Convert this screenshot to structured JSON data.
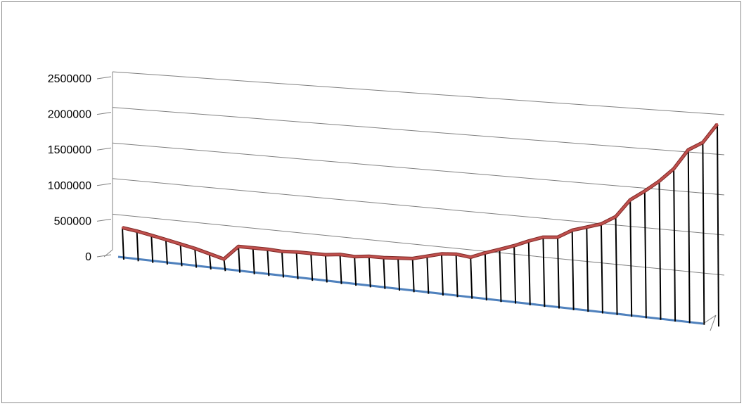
{
  "chart_data": {
    "type": "line",
    "style": "3d",
    "ylim": [
      0,
      2500000
    ],
    "y_ticks": [
      "0",
      "500000",
      "1000000",
      "1500000",
      "2000000",
      "2500000"
    ],
    "grid": true,
    "series": [
      {
        "color": "#c0504d",
        "values": [
          370000,
          340000,
          300000,
          260000,
          220000,
          180000,
          130000,
          80000,
          260000,
          260000,
          260000,
          250000,
          260000,
          260000,
          260000,
          280000,
          270000,
          290000,
          290000,
          300000,
          310000,
          350000,
          390000,
          400000,
          380000,
          440000,
          490000,
          540000,
          600000,
          650000,
          660000,
          740000,
          780000,
          820000,
          900000,
          1070000,
          1160000,
          1260000,
          1380000,
          1560000,
          1630000,
          1800000
        ]
      }
    ],
    "floor_color": "#4f81bd"
  }
}
